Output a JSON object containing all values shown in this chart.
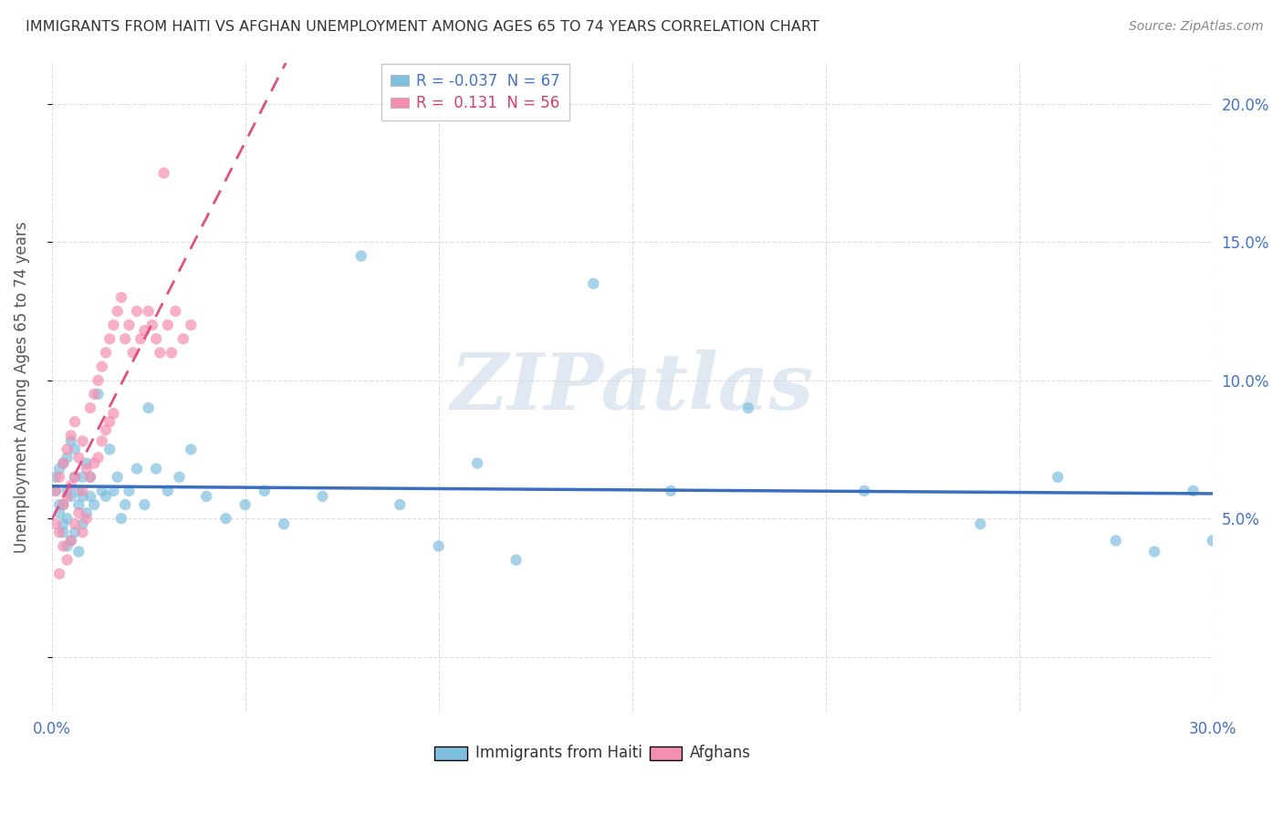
{
  "title": "IMMIGRANTS FROM HAITI VS AFGHAN UNEMPLOYMENT AMONG AGES 65 TO 74 YEARS CORRELATION CHART",
  "source": "Source: ZipAtlas.com",
  "ylabel": "Unemployment Among Ages 65 to 74 years",
  "xlim": [
    0.0,
    0.3
  ],
  "ylim": [
    -0.02,
    0.215
  ],
  "yticks": [
    0.0,
    0.05,
    0.1,
    0.15,
    0.2
  ],
  "ytick_labels": [
    "",
    "5.0%",
    "10.0%",
    "15.0%",
    "20.0%"
  ],
  "xticks": [
    0.0,
    0.05,
    0.1,
    0.15,
    0.2,
    0.25,
    0.3
  ],
  "xtick_labels": [
    "0.0%",
    "",
    "",
    "",
    "",
    "",
    "30.0%"
  ],
  "haiti_R": "-0.037",
  "haiti_N": "67",
  "afghan_R": "0.131",
  "afghan_N": "56",
  "haiti_color": "#7fbfdf",
  "afghan_color": "#f48fb1",
  "haiti_line_color": "#3a6fbf",
  "afghan_line_color": "#e05080",
  "background_color": "#ffffff",
  "watermark": "ZIPatlas",
  "grid_color": "#dddddd",
  "haiti_scatter_x": [
    0.001,
    0.001,
    0.002,
    0.002,
    0.002,
    0.003,
    0.003,
    0.003,
    0.003,
    0.004,
    0.004,
    0.004,
    0.004,
    0.005,
    0.005,
    0.005,
    0.006,
    0.006,
    0.006,
    0.007,
    0.007,
    0.007,
    0.008,
    0.008,
    0.008,
    0.009,
    0.009,
    0.01,
    0.01,
    0.011,
    0.012,
    0.013,
    0.014,
    0.015,
    0.016,
    0.017,
    0.018,
    0.019,
    0.02,
    0.022,
    0.024,
    0.025,
    0.027,
    0.03,
    0.033,
    0.036,
    0.04,
    0.045,
    0.05,
    0.055,
    0.06,
    0.07,
    0.08,
    0.09,
    0.1,
    0.11,
    0.12,
    0.14,
    0.16,
    0.18,
    0.21,
    0.24,
    0.26,
    0.275,
    0.285,
    0.295,
    0.3
  ],
  "haiti_scatter_y": [
    0.065,
    0.06,
    0.068,
    0.055,
    0.052,
    0.07,
    0.048,
    0.055,
    0.045,
    0.072,
    0.06,
    0.05,
    0.04,
    0.078,
    0.058,
    0.042,
    0.065,
    0.075,
    0.045,
    0.06,
    0.055,
    0.038,
    0.065,
    0.058,
    0.048,
    0.07,
    0.052,
    0.065,
    0.058,
    0.055,
    0.095,
    0.06,
    0.058,
    0.075,
    0.06,
    0.065,
    0.05,
    0.055,
    0.06,
    0.068,
    0.055,
    0.09,
    0.068,
    0.06,
    0.065,
    0.075,
    0.058,
    0.05,
    0.055,
    0.06,
    0.048,
    0.058,
    0.145,
    0.055,
    0.04,
    0.07,
    0.035,
    0.135,
    0.06,
    0.09,
    0.06,
    0.048,
    0.065,
    0.042,
    0.038,
    0.06,
    0.042
  ],
  "afghan_scatter_x": [
    0.001,
    0.001,
    0.002,
    0.002,
    0.002,
    0.003,
    0.003,
    0.003,
    0.004,
    0.004,
    0.004,
    0.005,
    0.005,
    0.005,
    0.006,
    0.006,
    0.006,
    0.007,
    0.007,
    0.008,
    0.008,
    0.008,
    0.009,
    0.009,
    0.01,
    0.01,
    0.011,
    0.011,
    0.012,
    0.012,
    0.013,
    0.013,
    0.014,
    0.014,
    0.015,
    0.015,
    0.016,
    0.016,
    0.017,
    0.018,
    0.019,
    0.02,
    0.021,
    0.022,
    0.023,
    0.024,
    0.025,
    0.026,
    0.027,
    0.028,
    0.029,
    0.03,
    0.031,
    0.032,
    0.034,
    0.036
  ],
  "afghan_scatter_y": [
    0.06,
    0.048,
    0.065,
    0.045,
    0.03,
    0.07,
    0.055,
    0.04,
    0.075,
    0.058,
    0.035,
    0.08,
    0.062,
    0.042,
    0.085,
    0.065,
    0.048,
    0.072,
    0.052,
    0.078,
    0.06,
    0.045,
    0.068,
    0.05,
    0.09,
    0.065,
    0.095,
    0.07,
    0.1,
    0.072,
    0.105,
    0.078,
    0.11,
    0.082,
    0.115,
    0.085,
    0.12,
    0.088,
    0.125,
    0.13,
    0.115,
    0.12,
    0.11,
    0.125,
    0.115,
    0.118,
    0.125,
    0.12,
    0.115,
    0.11,
    0.175,
    0.12,
    0.11,
    0.125,
    0.115,
    0.12
  ]
}
